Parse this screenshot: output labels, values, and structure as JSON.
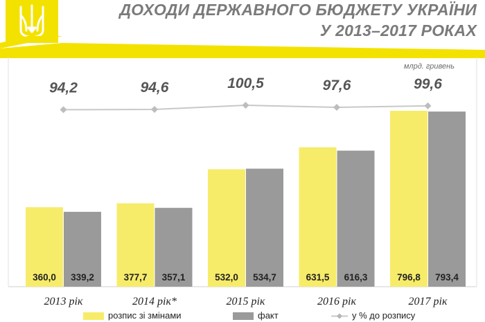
{
  "header": {
    "title_line1": "ДОХОДИ ДЕРЖАВНОГО БЮДЖЕТУ УКРАЇНИ",
    "title_line2": "У 2013–2017 РОКАХ",
    "emblem_icon": "trident-icon"
  },
  "colors": {
    "yellow": "#f7ec6a",
    "gray": "#9a9a9a",
    "line": "#c8c8c8",
    "accent_band": "#f3e200"
  },
  "chart_data": {
    "type": "bar",
    "unit_label": "млрд. гривень",
    "categories": [
      "2013 рік",
      "2014 рік*",
      "2015 рік",
      "2016 рік",
      "2017 рік"
    ],
    "series": [
      {
        "name": "розпис зі змінами",
        "values": [
          360.0,
          377.7,
          532.0,
          631.5,
          796.8
        ],
        "labels": [
          "360,0",
          "377,7",
          "532,0",
          "631,5",
          "796,8"
        ]
      },
      {
        "name": "факт",
        "values": [
          339.2,
          357.1,
          534.7,
          616.3,
          793.4
        ],
        "labels": [
          "339,2",
          "357,1",
          "534,7",
          "616,3",
          "793,4"
        ]
      }
    ],
    "line_series": {
      "name": "у % до розпису",
      "values": [
        94.2,
        94.6,
        100.5,
        97.6,
        99.6
      ],
      "labels": [
        "94,2",
        "94,6",
        "100,5",
        "97,6",
        "99,6"
      ]
    },
    "ylim": [
      0,
      900
    ],
    "grid": false,
    "legend": "bottom"
  }
}
